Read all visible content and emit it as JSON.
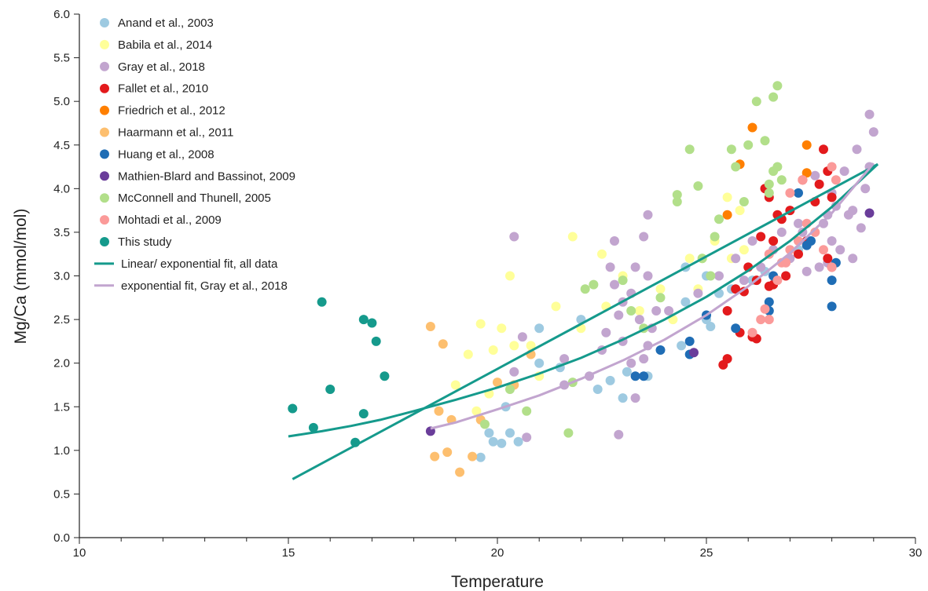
{
  "chart_data": {
    "type": "scatter",
    "title": "",
    "xlabel": "Temperature",
    "ylabel": "Mg/Ca (mmol/mol)",
    "xlim": [
      10,
      30
    ],
    "ylim": [
      0,
      6
    ],
    "x_ticks": [
      "10",
      "15",
      "20",
      "25",
      "30"
    ],
    "y_ticks": [
      "0.0",
      "0.5",
      "1.0",
      "1.5",
      "2.0",
      "2.5",
      "3.0",
      "3.5",
      "4.0",
      "4.5",
      "5.0",
      "5.5",
      "6.0"
    ],
    "grid": false,
    "legend_position": "top-left",
    "series": [
      {
        "name": "Anand et al., 2003",
        "color": "#9ecae1",
        "points": [
          [
            19.6,
            0.92
          ],
          [
            19.9,
            1.1
          ],
          [
            20.1,
            1.08
          ],
          [
            20.5,
            1.1
          ],
          [
            19.8,
            1.2
          ],
          [
            20.3,
            1.2
          ],
          [
            20.2,
            1.5
          ],
          [
            21.0,
            2.0
          ],
          [
            21.0,
            2.4
          ],
          [
            21.5,
            1.95
          ],
          [
            22.0,
            2.5
          ],
          [
            22.4,
            1.7
          ],
          [
            22.7,
            1.8
          ],
          [
            23.0,
            1.6
          ],
          [
            23.1,
            1.9
          ],
          [
            23.6,
            1.85
          ],
          [
            24.4,
            2.2
          ],
          [
            24.5,
            2.7
          ],
          [
            25.0,
            2.5
          ],
          [
            25.1,
            2.42
          ],
          [
            25.3,
            2.8
          ],
          [
            25.6,
            2.85
          ],
          [
            25.0,
            3.0
          ],
          [
            26.1,
            2.95
          ],
          [
            26.4,
            3.05
          ],
          [
            27.2,
            3.3
          ],
          [
            24.5,
            3.1
          ]
        ]
      },
      {
        "name": "Babila et al., 2014",
        "color": "#ffff99",
        "points": [
          [
            19.0,
            1.75
          ],
          [
            19.3,
            2.1
          ],
          [
            19.6,
            2.45
          ],
          [
            19.9,
            2.15
          ],
          [
            20.1,
            2.4
          ],
          [
            20.3,
            3.0
          ],
          [
            20.4,
            2.2
          ],
          [
            20.8,
            2.2
          ],
          [
            21.4,
            2.65
          ],
          [
            21.8,
            3.45
          ],
          [
            22.5,
            3.25
          ],
          [
            22.6,
            2.65
          ],
          [
            23.0,
            3.0
          ],
          [
            23.4,
            2.6
          ],
          [
            23.9,
            2.85
          ],
          [
            24.2,
            2.5
          ],
          [
            24.6,
            3.2
          ],
          [
            24.9,
            3.2
          ],
          [
            25.2,
            3.4
          ],
          [
            25.5,
            3.9
          ],
          [
            25.8,
            3.75
          ],
          [
            25.6,
            3.2
          ],
          [
            25.9,
            3.3
          ],
          [
            24.8,
            2.85
          ],
          [
            22.0,
            2.4
          ],
          [
            21.0,
            1.85
          ],
          [
            19.5,
            1.45
          ],
          [
            19.8,
            1.65
          ]
        ]
      },
      {
        "name": "Gray et al., 2018",
        "color": "#c2a5cf",
        "points": [
          [
            20.4,
            3.45
          ],
          [
            20.6,
            2.3
          ],
          [
            21.6,
            2.05
          ],
          [
            21.6,
            1.75
          ],
          [
            22.2,
            1.85
          ],
          [
            22.5,
            2.15
          ],
          [
            22.8,
            3.4
          ],
          [
            22.9,
            2.55
          ],
          [
            23.0,
            2.25
          ],
          [
            23.2,
            2.0
          ],
          [
            23.4,
            2.5
          ],
          [
            23.6,
            3.7
          ],
          [
            23.5,
            3.45
          ],
          [
            23.6,
            2.2
          ],
          [
            23.7,
            2.4
          ],
          [
            23.8,
            2.6
          ],
          [
            23.2,
            2.8
          ],
          [
            23.0,
            2.7
          ],
          [
            23.3,
            3.1
          ],
          [
            23.5,
            2.05
          ],
          [
            22.7,
            3.1
          ],
          [
            22.9,
            1.18
          ],
          [
            23.3,
            1.6
          ],
          [
            20.7,
            1.15
          ],
          [
            20.4,
            1.9
          ],
          [
            22.8,
            2.9
          ],
          [
            23.6,
            3.0
          ],
          [
            22.6,
            2.35
          ],
          [
            24.1,
            2.6
          ],
          [
            24.8,
            2.8
          ],
          [
            25.3,
            3.0
          ],
          [
            25.7,
            3.2
          ],
          [
            26.1,
            3.4
          ],
          [
            26.5,
            3.25
          ],
          [
            26.8,
            3.5
          ],
          [
            27.2,
            3.6
          ],
          [
            27.4,
            3.05
          ],
          [
            27.7,
            3.1
          ],
          [
            27.8,
            3.6
          ],
          [
            28.0,
            3.4
          ],
          [
            28.2,
            3.3
          ],
          [
            28.5,
            3.2
          ],
          [
            28.7,
            3.55
          ],
          [
            28.4,
            3.7
          ],
          [
            28.1,
            3.8
          ],
          [
            27.9,
            3.7
          ],
          [
            28.3,
            4.2
          ],
          [
            28.6,
            4.45
          ],
          [
            28.8,
            4.0
          ],
          [
            28.9,
            4.85
          ],
          [
            28.9,
            4.25
          ],
          [
            29.0,
            4.65
          ],
          [
            28.5,
            3.75
          ],
          [
            28.0,
            3.95
          ],
          [
            27.6,
            4.15
          ],
          [
            27.3,
            3.5
          ],
          [
            27.0,
            3.2
          ],
          [
            26.6,
            3.3
          ],
          [
            26.3,
            3.1
          ],
          [
            25.9,
            2.95
          ],
          [
            27.9,
            3.15
          ]
        ]
      },
      {
        "name": "Fallet et al., 2010",
        "color": "#e31a1c",
        "points": [
          [
            25.4,
            1.98
          ],
          [
            25.5,
            2.05
          ],
          [
            25.5,
            2.6
          ],
          [
            25.7,
            2.85
          ],
          [
            25.9,
            2.82
          ],
          [
            26.0,
            3.1
          ],
          [
            26.1,
            2.3
          ],
          [
            26.2,
            2.95
          ],
          [
            26.3,
            3.45
          ],
          [
            26.4,
            4.0
          ],
          [
            26.5,
            3.9
          ],
          [
            26.6,
            3.4
          ],
          [
            26.7,
            3.7
          ],
          [
            26.8,
            3.65
          ],
          [
            26.9,
            3.0
          ],
          [
            27.0,
            3.75
          ],
          [
            27.2,
            3.25
          ],
          [
            27.3,
            4.1
          ],
          [
            27.4,
            3.4
          ],
          [
            27.6,
            3.85
          ],
          [
            27.7,
            4.05
          ],
          [
            27.8,
            4.45
          ],
          [
            27.9,
            4.2
          ],
          [
            28.0,
            3.9
          ],
          [
            27.9,
            3.2
          ],
          [
            28.0,
            3.1
          ],
          [
            26.6,
            2.9
          ],
          [
            26.5,
            2.88
          ],
          [
            26.2,
            2.28
          ],
          [
            25.8,
            2.35
          ]
        ]
      },
      {
        "name": "Friedrich et al., 2012",
        "color": "#ff7f00",
        "points": [
          [
            25.5,
            3.7
          ],
          [
            25.8,
            4.28
          ],
          [
            26.1,
            4.7
          ],
          [
            27.4,
            4.5
          ],
          [
            27.4,
            4.18
          ]
        ]
      },
      {
        "name": "Haarmann et al., 2011",
        "color": "#fdbf6f",
        "points": [
          [
            18.4,
            2.42
          ],
          [
            18.5,
            0.93
          ],
          [
            18.6,
            1.45
          ],
          [
            18.7,
            2.22
          ],
          [
            18.8,
            0.98
          ],
          [
            18.9,
            1.35
          ],
          [
            19.1,
            0.75
          ],
          [
            19.4,
            0.93
          ],
          [
            19.6,
            1.35
          ],
          [
            20.0,
            1.78
          ],
          [
            20.4,
            1.75
          ],
          [
            20.8,
            2.1
          ]
        ]
      },
      {
        "name": "Huang et al., 2008",
        "color": "#1f6db5",
        "points": [
          [
            23.3,
            1.85
          ],
          [
            23.5,
            1.85
          ],
          [
            23.9,
            2.15
          ],
          [
            24.6,
            2.1
          ],
          [
            24.6,
            2.25
          ],
          [
            25.0,
            2.55
          ],
          [
            25.7,
            2.4
          ],
          [
            26.5,
            2.6
          ],
          [
            26.5,
            2.7
          ],
          [
            26.6,
            3.0
          ],
          [
            27.2,
            3.95
          ],
          [
            27.4,
            3.35
          ],
          [
            27.5,
            3.4
          ],
          [
            28.0,
            2.95
          ],
          [
            28.0,
            2.65
          ],
          [
            28.1,
            3.15
          ]
        ]
      },
      {
        "name": "Mathien-Blard and Bassinot, 2009",
        "color": "#6a3d9a",
        "points": [
          [
            18.4,
            1.22
          ],
          [
            24.7,
            2.12
          ],
          [
            28.9,
            3.72
          ]
        ]
      },
      {
        "name": "McConnell and Thunell, 2005",
        "color": "#b2df8a",
        "points": [
          [
            19.7,
            1.3
          ],
          [
            20.3,
            1.7
          ],
          [
            20.7,
            1.45
          ],
          [
            21.7,
            1.2
          ],
          [
            21.8,
            1.78
          ],
          [
            22.1,
            2.85
          ],
          [
            22.3,
            2.9
          ],
          [
            23.0,
            2.95
          ],
          [
            23.2,
            2.6
          ],
          [
            23.5,
            2.4
          ],
          [
            23.9,
            2.75
          ],
          [
            24.3,
            3.85
          ],
          [
            24.3,
            3.93
          ],
          [
            24.6,
            4.45
          ],
          [
            24.8,
            4.03
          ],
          [
            24.9,
            3.2
          ],
          [
            25.2,
            3.45
          ],
          [
            25.6,
            4.45
          ],
          [
            25.7,
            4.25
          ],
          [
            25.9,
            3.85
          ],
          [
            26.0,
            4.5
          ],
          [
            26.2,
            5.0
          ],
          [
            26.4,
            4.55
          ],
          [
            26.5,
            3.95
          ],
          [
            26.6,
            4.2
          ],
          [
            26.6,
            5.05
          ],
          [
            26.7,
            5.18
          ],
          [
            26.7,
            4.25
          ],
          [
            26.8,
            4.1
          ],
          [
            26.5,
            4.05
          ],
          [
            25.3,
            3.65
          ],
          [
            25.1,
            3.0
          ]
        ]
      },
      {
        "name": "Mohtadi et al., 2009",
        "color": "#fb9a99",
        "points": [
          [
            26.1,
            2.35
          ],
          [
            26.3,
            2.5
          ],
          [
            26.4,
            2.62
          ],
          [
            26.5,
            2.5
          ],
          [
            26.7,
            2.95
          ],
          [
            26.8,
            3.15
          ],
          [
            27.0,
            3.3
          ],
          [
            27.2,
            3.4
          ],
          [
            27.4,
            3.6
          ],
          [
            27.6,
            3.5
          ],
          [
            27.8,
            3.3
          ],
          [
            28.0,
            3.1
          ],
          [
            28.1,
            4.1
          ],
          [
            28.0,
            4.25
          ],
          [
            27.3,
            4.1
          ],
          [
            27.0,
            3.95
          ],
          [
            26.5,
            3.25
          ],
          [
            26.9,
            3.15
          ]
        ]
      },
      {
        "name": "This study",
        "color": "#159a8c",
        "points": [
          [
            15.1,
            1.48
          ],
          [
            15.6,
            1.26
          ],
          [
            15.8,
            2.7
          ],
          [
            16.0,
            1.7
          ],
          [
            16.6,
            1.09
          ],
          [
            16.8,
            1.42
          ],
          [
            16.8,
            2.5
          ],
          [
            17.0,
            2.46
          ],
          [
            17.1,
            2.25
          ],
          [
            17.3,
            1.85
          ]
        ]
      }
    ],
    "fit_lines": [
      {
        "name": "Linear/ exponential fit, all data",
        "color": "#159a8c",
        "type": "linear",
        "x": [
          15.1,
          29.1
        ],
        "y": [
          0.67,
          4.28
        ]
      },
      {
        "name": "Linear/ exponential fit, all data",
        "color": "#159a8c",
        "type": "exponential",
        "x": [
          15.0,
          15.8,
          16.5,
          17.2,
          18.0,
          19.0,
          20.0,
          21.0,
          22.0,
          23.0,
          24.0,
          25.0,
          26.0,
          27.0,
          28.0,
          29.1
        ],
        "y": [
          1.16,
          1.22,
          1.28,
          1.35,
          1.45,
          1.58,
          1.72,
          1.88,
          2.06,
          2.27,
          2.5,
          2.76,
          3.06,
          3.4,
          3.79,
          4.28
        ]
      },
      {
        "name": "exponential fit, Gray et al., 2018",
        "color": "#c2a5cf",
        "type": "exponential",
        "x": [
          18.4,
          19.0,
          20.0,
          21.0,
          22.0,
          23.0,
          24.0,
          25.0,
          26.0,
          27.0,
          28.0,
          29.0
        ],
        "y": [
          1.25,
          1.32,
          1.47,
          1.63,
          1.82,
          2.03,
          2.27,
          2.55,
          2.88,
          3.26,
          3.72,
          4.29
        ]
      }
    ],
    "legend_entries": [
      {
        "label": "Anand et al., 2003",
        "kind": "dot",
        "color": "#9ecae1"
      },
      {
        "label": "Babila et al., 2014",
        "kind": "dot",
        "color": "#ffff99"
      },
      {
        "label": "Gray et al., 2018",
        "kind": "dot",
        "color": "#c2a5cf"
      },
      {
        "label": "Fallet et al., 2010",
        "kind": "dot",
        "color": "#e31a1c"
      },
      {
        "label": "Friedrich et al., 2012",
        "kind": "dot",
        "color": "#ff7f00"
      },
      {
        "label": "Haarmann et al., 2011",
        "kind": "dot",
        "color": "#fdbf6f"
      },
      {
        "label": "Huang et al., 2008",
        "kind": "dot",
        "color": "#1f6db5"
      },
      {
        "label": "Mathien-Blard and Bassinot, 2009",
        "kind": "dot",
        "color": "#6a3d9a"
      },
      {
        "label": "McConnell and Thunell, 2005",
        "kind": "dot",
        "color": "#b2df8a"
      },
      {
        "label": "Mohtadi et al., 2009",
        "kind": "dot",
        "color": "#fb9a99"
      },
      {
        "label": "This study",
        "kind": "dot",
        "color": "#159a8c"
      },
      {
        "label": "Linear/ exponential fit, all data",
        "kind": "line",
        "color": "#159a8c"
      },
      {
        "label": "exponential fit, Gray et al., 2018",
        "kind": "line",
        "color": "#c2a5cf"
      }
    ]
  }
}
